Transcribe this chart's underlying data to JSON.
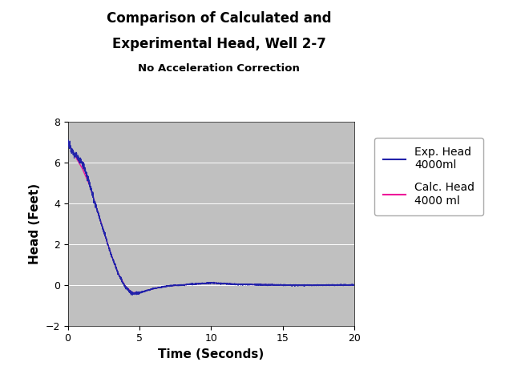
{
  "title_line1": "Comparison of Calculated and",
  "title_line2": "Experimental Head, Well 2-7",
  "subtitle": "No Acceleration Correction",
  "xlabel": "Time (Seconds)",
  "ylabel": "Head (Feet)",
  "xlim": [
    0,
    20
  ],
  "ylim": [
    -2,
    8
  ],
  "xticks": [
    0,
    5,
    10,
    15,
    20
  ],
  "yticks": [
    -2,
    0,
    2,
    4,
    6,
    8
  ],
  "plot_bg_color": "#c0c0c0",
  "fig_bg_color": "#ffffff",
  "exp_color": "#2222aa",
  "calc_color": "#ee1199",
  "legend_exp_label": "Exp. Head\n4000ml",
  "legend_calc_label": "Calc. Head\n4000 ml"
}
